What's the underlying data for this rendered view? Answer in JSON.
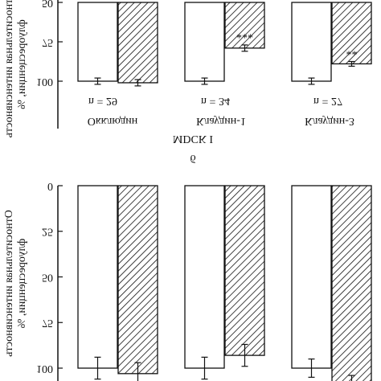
{
  "chart_data": [
    {
      "type": "bar",
      "ylabel": [
        "Относительная интенсивность",
        "флуоресценции, %"
      ],
      "ylim": [
        0,
        110
      ],
      "yticks": [
        0,
        25,
        50,
        75,
        100
      ],
      "series": [
        {
          "color": "#ffffff",
          "hatch": false,
          "values": [
            100,
            100,
            100
          ],
          "errors": [
            6,
            6,
            5
          ]
        },
        {
          "color": "#ffffff",
          "hatch": true,
          "values": [
            103,
            93,
            110
          ],
          "errors": [
            6,
            6,
            6
          ]
        }
      ]
    },
    {
      "type": "bar",
      "ylabel": [
        "Относительная интенсивность",
        "флуоресценции, %"
      ],
      "ylim": [
        50,
        130
      ],
      "yticks": [
        50,
        75,
        100
      ],
      "categories": [
        "Окклюдин",
        "Клаудин-1",
        "Клаудин-3"
      ],
      "n_labels": [
        "n = 29",
        "n = 34",
        "n = 27"
      ],
      "group_label": "MDCK I",
      "panel_label": "б",
      "series": [
        {
          "color": "#ffffff",
          "hatch": false,
          "values": [
            100,
            100,
            100
          ],
          "errors": [
            2,
            2,
            2
          ]
        },
        {
          "color": "#ffffff",
          "hatch": true,
          "values": [
            101,
            79,
            89
          ],
          "errors": [
            2,
            2,
            1.5
          ],
          "value_labels": [
            null,
            "***",
            "**"
          ]
        }
      ]
    }
  ]
}
